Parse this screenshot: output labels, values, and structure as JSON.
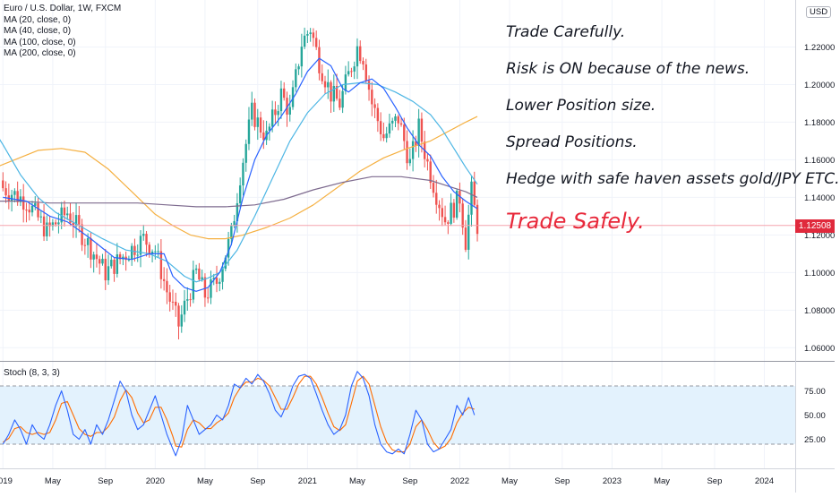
{
  "header": {
    "title": "Euro / U.S. Dollar, 1W, FXCM",
    "indicators": [
      "MA (20, close, 0)",
      "MA (40, close, 0)",
      "MA (100, close, 0)",
      "MA (200, close, 0)"
    ]
  },
  "stoch_label": "Stoch (8, 3, 3)",
  "currency_badge": "USD",
  "notes": [
    "Trade Carefully.",
    "Risk is ON because of the news.",
    "Lower Position size.",
    "Spread Positions.",
    "Hedge with safe haven assets gold/JPY ETC."
  ],
  "warning": "Trade Safely.",
  "colors": {
    "up": "#26a69a",
    "down": "#ef5350",
    "ma20": "#2962ff",
    "ma40": "#4db6e4",
    "ma100": "#f5b041",
    "ma200": "#7e6b8f",
    "stoch_k": "#2962ff",
    "stoch_d": "#ff6d00",
    "stoch_band": "#e3f2fd",
    "price_tag": "#e0293c",
    "warning": "#e8283a"
  },
  "chart_data": [
    {
      "type": "candlestick",
      "title": "Euro / U.S. Dollar, 1W, FXCM",
      "interval": "1W",
      "y_ticks": [
        1.06,
        1.08,
        1.1,
        1.12,
        1.14,
        1.16,
        1.18,
        1.2,
        1.22
      ],
      "y_tick_labels": [
        "1.06000",
        "1.08000",
        "1.10000",
        "1.12000",
        "1.14000",
        "1.16000",
        "1.18000",
        "1.20000",
        "1.22000"
      ],
      "ylim": [
        1.053,
        1.245
      ],
      "last_price": 1.12508,
      "last_price_label": "1.12508",
      "x_tick_labels": [
        "2019",
        "May",
        "Sep",
        "2020",
        "May",
        "Sep",
        "2021",
        "May",
        "Sep",
        "2022",
        "May",
        "Sep",
        "2023",
        "May",
        "Sep",
        "2024"
      ],
      "x_tick_positions": [
        0,
        17,
        35,
        52,
        69,
        87,
        104,
        121,
        139,
        156,
        173,
        191,
        208,
        225,
        243,
        260
      ],
      "x_range": [
        -4,
        275
      ],
      "price_path": [
        [
          0,
          1.145
        ],
        [
          8,
          1.138
        ],
        [
          15,
          1.122
        ],
        [
          22,
          1.132
        ],
        [
          28,
          1.118
        ],
        [
          35,
          1.1
        ],
        [
          42,
          1.11
        ],
        [
          48,
          1.118
        ],
        [
          52,
          1.112
        ],
        [
          56,
          1.09
        ],
        [
          60,
          1.072
        ],
        [
          62,
          1.082
        ],
        [
          66,
          1.1
        ],
        [
          69,
          1.088
        ],
        [
          73,
          1.095
        ],
        [
          78,
          1.12
        ],
        [
          81,
          1.152
        ],
        [
          85,
          1.185
        ],
        [
          90,
          1.172
        ],
        [
          95,
          1.195
        ],
        [
          98,
          1.185
        ],
        [
          102,
          1.222
        ],
        [
          105,
          1.23
        ],
        [
          108,
          1.212
        ],
        [
          112,
          1.195
        ],
        [
          115,
          1.19
        ],
        [
          118,
          1.205
        ],
        [
          121,
          1.22
        ],
        [
          123,
          1.215
        ],
        [
          126,
          1.19
        ],
        [
          130,
          1.172
        ],
        [
          135,
          1.182
        ],
        [
          139,
          1.158
        ],
        [
          142,
          1.177
        ],
        [
          145,
          1.158
        ],
        [
          148,
          1.142
        ],
        [
          151,
          1.128
        ],
        [
          154,
          1.135
        ],
        [
          156,
          1.14
        ],
        [
          158,
          1.117
        ],
        [
          160,
          1.143
        ],
        [
          162,
          1.125
        ]
      ],
      "ma20": [
        [
          0,
          1.14
        ],
        [
          8,
          1.138
        ],
        [
          16,
          1.13
        ],
        [
          22,
          1.127
        ],
        [
          30,
          1.118
        ],
        [
          38,
          1.108
        ],
        [
          44,
          1.107
        ],
        [
          50,
          1.11
        ],
        [
          55,
          1.11
        ],
        [
          58,
          1.098
        ],
        [
          62,
          1.092
        ],
        [
          66,
          1.09
        ],
        [
          70,
          1.092
        ],
        [
          74,
          1.1
        ],
        [
          78,
          1.115
        ],
        [
          82,
          1.14
        ],
        [
          86,
          1.16
        ],
        [
          90,
          1.173
        ],
        [
          95,
          1.183
        ],
        [
          100,
          1.195
        ],
        [
          104,
          1.207
        ],
        [
          108,
          1.214
        ],
        [
          112,
          1.21
        ],
        [
          116,
          1.198
        ],
        [
          118,
          1.196
        ],
        [
          122,
          1.201
        ],
        [
          126,
          1.203
        ],
        [
          130,
          1.198
        ],
        [
          134,
          1.188
        ],
        [
          138,
          1.177
        ],
        [
          142,
          1.168
        ],
        [
          146,
          1.162
        ],
        [
          150,
          1.151
        ],
        [
          154,
          1.143
        ],
        [
          158,
          1.138
        ],
        [
          162,
          1.134
        ]
      ],
      "ma40": [
        [
          -4,
          1.178
        ],
        [
          0,
          1.168
        ],
        [
          6,
          1.152
        ],
        [
          12,
          1.14
        ],
        [
          18,
          1.132
        ],
        [
          26,
          1.125
        ],
        [
          34,
          1.118
        ],
        [
          42,
          1.112
        ],
        [
          50,
          1.11
        ],
        [
          56,
          1.106
        ],
        [
          62,
          1.098
        ],
        [
          66,
          1.095
        ],
        [
          70,
          1.097
        ],
        [
          74,
          1.1
        ],
        [
          80,
          1.112
        ],
        [
          86,
          1.13
        ],
        [
          92,
          1.15
        ],
        [
          98,
          1.17
        ],
        [
          104,
          1.185
        ],
        [
          110,
          1.195
        ],
        [
          116,
          1.2
        ],
        [
          122,
          1.201
        ],
        [
          128,
          1.2
        ],
        [
          134,
          1.196
        ],
        [
          140,
          1.191
        ],
        [
          146,
          1.184
        ],
        [
          150,
          1.176
        ],
        [
          154,
          1.166
        ],
        [
          158,
          1.156
        ],
        [
          162,
          1.147
        ]
      ],
      "ma100": [
        [
          -4,
          1.155
        ],
        [
          4,
          1.16
        ],
        [
          12,
          1.165
        ],
        [
          20,
          1.166
        ],
        [
          28,
          1.164
        ],
        [
          36,
          1.155
        ],
        [
          44,
          1.143
        ],
        [
          52,
          1.131
        ],
        [
          58,
          1.125
        ],
        [
          64,
          1.12
        ],
        [
          70,
          1.118
        ],
        [
          76,
          1.118
        ],
        [
          82,
          1.12
        ],
        [
          90,
          1.124
        ],
        [
          98,
          1.129
        ],
        [
          106,
          1.136
        ],
        [
          114,
          1.145
        ],
        [
          122,
          1.154
        ],
        [
          130,
          1.161
        ],
        [
          138,
          1.166
        ],
        [
          146,
          1.17
        ],
        [
          152,
          1.175
        ],
        [
          158,
          1.18
        ],
        [
          162,
          1.183
        ]
      ],
      "ma200": [
        [
          -4,
          1.138
        ],
        [
          6,
          1.138
        ],
        [
          16,
          1.137
        ],
        [
          26,
          1.137
        ],
        [
          36,
          1.137
        ],
        [
          46,
          1.137
        ],
        [
          56,
          1.136
        ],
        [
          66,
          1.135
        ],
        [
          76,
          1.135
        ],
        [
          86,
          1.136
        ],
        [
          96,
          1.139
        ],
        [
          106,
          1.144
        ],
        [
          116,
          1.148
        ],
        [
          126,
          1.151
        ],
        [
          136,
          1.151
        ],
        [
          146,
          1.149
        ],
        [
          152,
          1.146
        ],
        [
          158,
          1.143
        ],
        [
          162,
          1.14
        ]
      ]
    },
    {
      "type": "line",
      "title": "Stoch (8, 3, 3)",
      "y_ticks": [
        25,
        50,
        75
      ],
      "y_tick_labels": [
        "25.00",
        "50.00",
        "75.00"
      ],
      "ylim": [
        -5,
        105
      ],
      "bands": [
        20,
        80
      ],
      "k": [
        [
          0,
          20
        ],
        [
          2,
          30
        ],
        [
          4,
          45
        ],
        [
          6,
          35
        ],
        [
          8,
          20
        ],
        [
          10,
          40
        ],
        [
          12,
          30
        ],
        [
          14,
          25
        ],
        [
          16,
          40
        ],
        [
          18,
          60
        ],
        [
          20,
          75
        ],
        [
          22,
          55
        ],
        [
          24,
          30
        ],
        [
          26,
          25
        ],
        [
          28,
          35
        ],
        [
          30,
          20
        ],
        [
          32,
          40
        ],
        [
          34,
          30
        ],
        [
          36,
          45
        ],
        [
          38,
          65
        ],
        [
          40,
          85
        ],
        [
          42,
          75
        ],
        [
          44,
          50
        ],
        [
          46,
          35
        ],
        [
          48,
          40
        ],
        [
          50,
          55
        ],
        [
          52,
          70
        ],
        [
          54,
          50
        ],
        [
          56,
          30
        ],
        [
          58,
          15
        ],
        [
          59,
          8
        ],
        [
          61,
          25
        ],
        [
          63,
          60
        ],
        [
          65,
          45
        ],
        [
          67,
          30
        ],
        [
          69,
          35
        ],
        [
          71,
          40
        ],
        [
          73,
          50
        ],
        [
          75,
          45
        ],
        [
          77,
          60
        ],
        [
          79,
          82
        ],
        [
          81,
          78
        ],
        [
          83,
          88
        ],
        [
          85,
          82
        ],
        [
          87,
          92
        ],
        [
          89,
          85
        ],
        [
          91,
          72
        ],
        [
          93,
          55
        ],
        [
          95,
          48
        ],
        [
          97,
          62
        ],
        [
          99,
          80
        ],
        [
          101,
          90
        ],
        [
          103,
          92
        ],
        [
          105,
          88
        ],
        [
          107,
          72
        ],
        [
          109,
          55
        ],
        [
          111,
          40
        ],
        [
          113,
          30
        ],
        [
          115,
          35
        ],
        [
          117,
          50
        ],
        [
          119,
          80
        ],
        [
          121,
          95
        ],
        [
          123,
          88
        ],
        [
          125,
          70
        ],
        [
          127,
          40
        ],
        [
          129,
          20
        ],
        [
          131,
          12
        ],
        [
          133,
          10
        ],
        [
          135,
          15
        ],
        [
          137,
          10
        ],
        [
          139,
          30
        ],
        [
          141,
          55
        ],
        [
          143,
          45
        ],
        [
          145,
          20
        ],
        [
          147,
          12
        ],
        [
          149,
          15
        ],
        [
          151,
          25
        ],
        [
          153,
          35
        ],
        [
          155,
          60
        ],
        [
          157,
          50
        ],
        [
          159,
          68
        ],
        [
          161,
          50
        ]
      ],
      "d": [
        [
          0,
          22
        ],
        [
          2,
          26
        ],
        [
          4,
          36
        ],
        [
          6,
          38
        ],
        [
          8,
          32
        ],
        [
          10,
          30
        ],
        [
          12,
          32
        ],
        [
          14,
          30
        ],
        [
          16,
          32
        ],
        [
          18,
          45
        ],
        [
          20,
          62
        ],
        [
          22,
          64
        ],
        [
          24,
          50
        ],
        [
          26,
          36
        ],
        [
          28,
          30
        ],
        [
          30,
          28
        ],
        [
          32,
          32
        ],
        [
          34,
          32
        ],
        [
          36,
          38
        ],
        [
          38,
          48
        ],
        [
          40,
          65
        ],
        [
          42,
          76
        ],
        [
          44,
          68
        ],
        [
          46,
          52
        ],
        [
          48,
          42
        ],
        [
          50,
          45
        ],
        [
          52,
          58
        ],
        [
          54,
          58
        ],
        [
          56,
          45
        ],
        [
          58,
          28
        ],
        [
          59,
          18
        ],
        [
          61,
          17
        ],
        [
          63,
          35
        ],
        [
          65,
          45
        ],
        [
          67,
          42
        ],
        [
          69,
          36
        ],
        [
          71,
          36
        ],
        [
          73,
          42
        ],
        [
          75,
          46
        ],
        [
          77,
          52
        ],
        [
          79,
          68
        ],
        [
          81,
          78
        ],
        [
          83,
          84
        ],
        [
          85,
          84
        ],
        [
          87,
          88
        ],
        [
          89,
          86
        ],
        [
          91,
          80
        ],
        [
          93,
          68
        ],
        [
          95,
          56
        ],
        [
          97,
          56
        ],
        [
          99,
          68
        ],
        [
          101,
          82
        ],
        [
          103,
          90
        ],
        [
          105,
          90
        ],
        [
          107,
          82
        ],
        [
          109,
          68
        ],
        [
          111,
          52
        ],
        [
          113,
          38
        ],
        [
          115,
          34
        ],
        [
          117,
          40
        ],
        [
          119,
          62
        ],
        [
          121,
          85
        ],
        [
          123,
          90
        ],
        [
          125,
          82
        ],
        [
          127,
          60
        ],
        [
          129,
          38
        ],
        [
          131,
          22
        ],
        [
          133,
          14
        ],
        [
          135,
          12
        ],
        [
          137,
          12
        ],
        [
          139,
          20
        ],
        [
          141,
          38
        ],
        [
          143,
          45
        ],
        [
          145,
          35
        ],
        [
          147,
          22
        ],
        [
          149,
          15
        ],
        [
          151,
          18
        ],
        [
          153,
          26
        ],
        [
          155,
          42
        ],
        [
          157,
          52
        ],
        [
          159,
          58
        ],
        [
          161,
          56
        ]
      ]
    }
  ]
}
